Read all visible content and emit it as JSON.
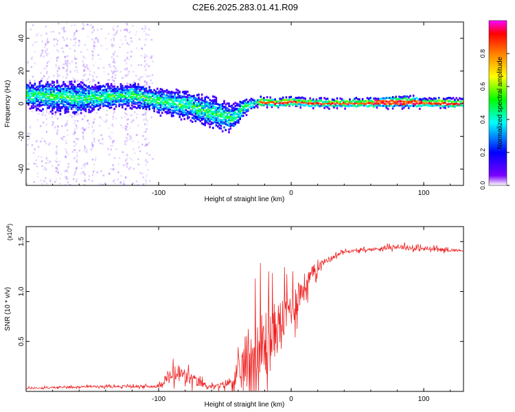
{
  "title": "C2E6.2025.283.01.41.R09",
  "chart_data": [
    {
      "type": "heatmap",
      "xlabel": "Height of straight line (km)",
      "ylabel": "Frequency (Hz)",
      "xlim": [
        -200,
        130
      ],
      "ylim": [
        -50,
        50
      ],
      "x_ticks": [
        -100,
        0,
        100
      ],
      "y_ticks": [
        -40,
        -20,
        0,
        20,
        40
      ],
      "colorbar": {
        "label": "Normalized spectral amplitude",
        "range": [
          0,
          1
        ],
        "ticks": [
          0.0,
          0.2,
          0.4,
          0.6,
          0.8
        ],
        "colors": [
          "#ffffff",
          "#7a00ff",
          "#0000ff",
          "#00ffff",
          "#00ff00",
          "#ffff00",
          "#ff8000",
          "#ff0000",
          "#ff00ff"
        ]
      },
      "ridge": {
        "x": [
          -200,
          -180,
          -160,
          -140,
          -120,
          -100,
          -80,
          -60,
          -45,
          -35,
          -25,
          -10,
          0,
          20,
          60,
          85,
          100,
          130
        ],
        "freq": [
          6,
          5,
          4,
          5,
          6,
          2,
          0,
          -5,
          -8,
          -1,
          2,
          1,
          2,
          1,
          1,
          2,
          1,
          1
        ],
        "width": [
          9,
          10,
          10,
          8,
          8,
          8,
          9,
          10,
          9,
          5,
          3,
          3,
          3,
          3,
          3,
          4,
          3,
          3
        ]
      }
    },
    {
      "type": "line",
      "xlabel": "Height of straight line (km)",
      "ylabel": "SNR (10 * v/v)",
      "y_scale_label": "(x10",
      "y_scale_exponent": "4",
      "y_scale_close": ")",
      "xlim": [
        -200,
        130
      ],
      "ylim": [
        0,
        1.65
      ],
      "x_ticks": [
        -100,
        0,
        100
      ],
      "y_ticks": [
        0.5,
        1.0,
        1.5
      ],
      "y_tick_labels": [
        "0.5",
        "1.0",
        "1.5"
      ],
      "series": [
        {
          "name": "SNR",
          "color": "#ee2222",
          "envelope": {
            "x": [
              -200,
              -150,
              -100,
              -95,
              -85,
              -75,
              -62,
              -55,
              -45,
              -40,
              -32,
              -27,
              -20,
              -10,
              0,
              10,
              20,
              25,
              40,
              60,
              80,
              95,
              130
            ],
            "base": [
              0.03,
              0.05,
              0.05,
              0.12,
              0.18,
              0.12,
              0.05,
              0.05,
              0.1,
              0.15,
              0.35,
              0.3,
              0.45,
              0.65,
              0.85,
              1.05,
              1.25,
              1.3,
              1.4,
              1.42,
              1.45,
              1.43,
              1.41
            ],
            "noise": [
              0.02,
              0.02,
              0.03,
              0.12,
              0.22,
              0.14,
              0.04,
              0.05,
              0.12,
              0.3,
              0.8,
              1.0,
              0.9,
              0.55,
              0.45,
              0.3,
              0.12,
              0.06,
              0.03,
              0.03,
              0.05,
              0.06,
              0.02
            ]
          }
        }
      ]
    }
  ]
}
